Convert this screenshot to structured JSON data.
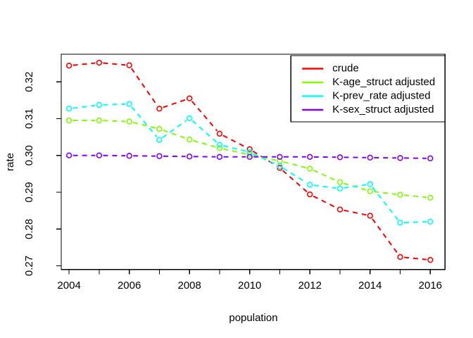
{
  "chart_data": {
    "type": "line",
    "title": "",
    "xlabel": "population",
    "ylabel": "rate",
    "background": "#FFFFFF",
    "axis_color": "#000000",
    "grid": false,
    "line_style": "dashed",
    "marker": "open-circle",
    "legend_position": "top-right",
    "xlim": [
      2003.74,
      2016.49
    ],
    "ylim": [
      0.269,
      0.3275
    ],
    "x": [
      2004,
      2005,
      2006,
      2007,
      2008,
      2009,
      2010,
      2011,
      2012,
      2013,
      2014,
      2015,
      2016
    ],
    "x_ticks": {
      "minor_values": [
        2004,
        2005,
        2006,
        2007,
        2008,
        2009,
        2010,
        2011,
        2012,
        2013,
        2014,
        2015,
        2016
      ],
      "labeled": [
        {
          "value": 2004,
          "label": "2004"
        },
        {
          "value": 2006,
          "label": "2006"
        },
        {
          "value": 2008,
          "label": "2008"
        },
        {
          "value": 2010,
          "label": "2010"
        },
        {
          "value": 2012,
          "label": "2012"
        },
        {
          "value": 2014,
          "label": "2014"
        },
        {
          "value": 2016,
          "label": "2016"
        }
      ]
    },
    "y_ticks": {
      "values": [
        0.27,
        0.28,
        0.29,
        0.3,
        0.31,
        0.32
      ],
      "labels": [
        "0.27",
        "0.28",
        "0.29",
        "0.30",
        "0.31",
        "0.32"
      ]
    },
    "series": [
      {
        "name": "crude",
        "color": "#FF0000",
        "values": [
          0.3244,
          0.3252,
          0.3245,
          0.3127,
          0.3155,
          0.3059,
          0.3017,
          0.2966,
          0.2894,
          0.2853,
          0.2836,
          0.2724,
          0.2716
        ]
      },
      {
        "name": "K-age_struct adjusted",
        "color": "#80FF00",
        "values": [
          0.3095,
          0.3095,
          0.3092,
          0.3072,
          0.3043,
          0.302,
          0.3002,
          0.2985,
          0.2964,
          0.2927,
          0.2903,
          0.2893,
          0.2885
        ]
      },
      {
        "name": "K-prev_rate adjusted",
        "color": "#00FFFF",
        "values": [
          0.3127,
          0.3137,
          0.314,
          0.3042,
          0.3101,
          0.3029,
          0.3009,
          0.2971,
          0.292,
          0.291,
          0.2922,
          0.2817,
          0.282
        ]
      },
      {
        "name": "K-sex_struct adjusted",
        "color": "#8000FF",
        "values": [
          0.3,
          0.3,
          0.2999,
          0.2998,
          0.2997,
          0.2996,
          0.2996,
          0.2996,
          0.2996,
          0.2995,
          0.2994,
          0.2993,
          0.2992
        ]
      }
    ]
  }
}
